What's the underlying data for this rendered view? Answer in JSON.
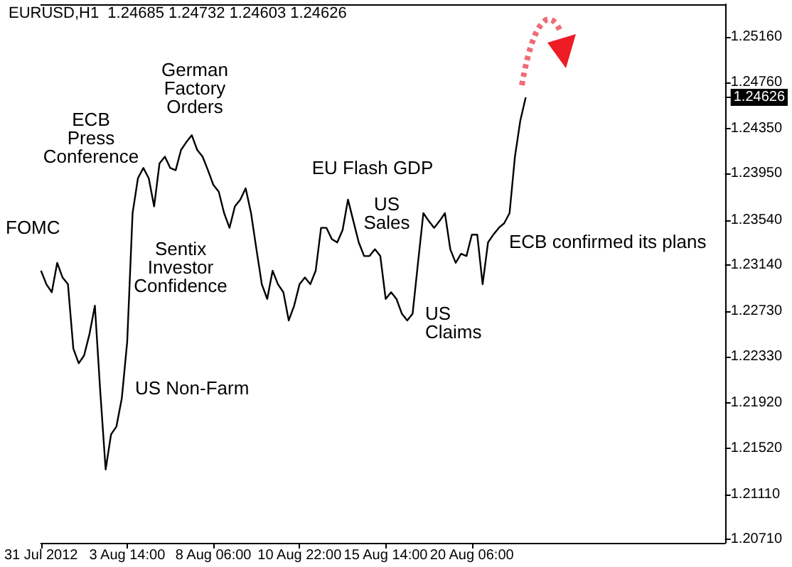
{
  "chart_data": {
    "type": "line",
    "title": "EURUSD,H1  1.24685 1.24732 1.24603 1.24626",
    "categories": [
      "31 Jul 2012",
      null,
      null,
      null,
      null,
      null,
      null,
      null,
      null,
      null,
      null,
      null,
      null,
      null,
      null,
      null,
      "3 Aug 14:00",
      null,
      null,
      null,
      null,
      null,
      null,
      null,
      null,
      null,
      null,
      null,
      null,
      null,
      null,
      null,
      "8 Aug 06:00",
      null,
      null,
      null,
      null,
      null,
      null,
      null,
      null,
      null,
      null,
      null,
      null,
      null,
      null,
      null,
      "10 Aug 22:00",
      null,
      null,
      null,
      null,
      null,
      null,
      null,
      null,
      null,
      null,
      null,
      null,
      null,
      null,
      null,
      "15 Aug 14:00",
      null,
      null,
      null,
      null,
      null,
      null,
      null,
      null,
      null,
      null,
      null,
      null,
      null,
      null,
      null,
      "20 Aug 06:00",
      null,
      null,
      null,
      null,
      null,
      null,
      null,
      null,
      null,
      null,
      null,
      null,
      null,
      null,
      null,
      null,
      null,
      null,
      null,
      null,
      null,
      null,
      null,
      null,
      null,
      null,
      null,
      null,
      null,
      null,
      null,
      null,
      null,
      null,
      null,
      null,
      null,
      null,
      null,
      null,
      null,
      null,
      null,
      null,
      null,
      null,
      null
    ],
    "series": [
      {
        "color": "#000000",
        "values": [
          1.2309,
          1.2297,
          1.229,
          1.2316,
          1.2303,
          1.2297,
          1.224,
          1.2227,
          1.2234,
          1.2253,
          1.2278,
          1.2202,
          1.2133,
          1.2164,
          1.2171,
          1.2196,
          1.2246,
          1.236,
          1.2391,
          1.24,
          1.2391,
          1.2366,
          1.2404,
          1.241,
          1.24,
          1.2398,
          1.2416,
          1.2423,
          1.2429,
          1.2416,
          1.241,
          1.2398,
          1.2385,
          1.2379,
          1.236,
          1.2347,
          1.2366,
          1.2372,
          1.2382,
          1.236,
          1.2328,
          1.2297,
          1.2284,
          1.2309,
          1.2297,
          1.229,
          1.2265,
          1.2278,
          1.2297,
          1.2303,
          1.2297,
          1.2309,
          1.2347,
          1.2347,
          1.2337,
          1.2334,
          1.2345,
          1.2372,
          1.2353,
          1.2334,
          1.2322,
          1.2322,
          1.2328,
          1.2322,
          1.2284,
          1.229,
          1.2284,
          1.2271,
          1.2265,
          1.2271,
          1.2316,
          1.236,
          1.2353,
          1.2347,
          1.2353,
          1.236,
          1.2328,
          1.2316,
          1.2324,
          1.2322,
          1.2341,
          1.2341,
          1.2297,
          1.2334,
          1.2341,
          1.2347,
          1.2351,
          1.236,
          1.241,
          1.2442,
          1.24626,
          null,
          null,
          null,
          null,
          null,
          null,
          null,
          null,
          null,
          null,
          null,
          null,
          null,
          null,
          null,
          null,
          null,
          null,
          null,
          null,
          null,
          null,
          null,
          null,
          null,
          null,
          null,
          null,
          null,
          null,
          null,
          null,
          null,
          null,
          null,
          null,
          null
        ]
      }
    ],
    "ylim": [
      1.2068,
      1.2545
    ],
    "yticks": [
      {
        "value": 1.2071,
        "label": "1.20710"
      },
      {
        "value": 1.2111,
        "label": "1.21110"
      },
      {
        "value": 1.2152,
        "label": "1.21520"
      },
      {
        "value": 1.2192,
        "label": "1.21920"
      },
      {
        "value": 1.2233,
        "label": "1.22330"
      },
      {
        "value": 1.2273,
        "label": "1.22730"
      },
      {
        "value": 1.2314,
        "label": "1.23140"
      },
      {
        "value": 1.2354,
        "label": "1.23540"
      },
      {
        "value": 1.2395,
        "label": "1.23950"
      },
      {
        "value": 1.2435,
        "label": "1.24350"
      },
      {
        "value": 1.2476,
        "label": "1.24760"
      },
      {
        "value": 1.24626,
        "label": "1.24626"
      },
      {
        "value": 1.2516,
        "label": "1.25160"
      }
    ],
    "annotations": [
      "FOMC",
      "ECB\nPress\nConference",
      "German\nFactory\nOrders",
      "Sentix\nInvestor\nConfidence",
      "US Non-Farm",
      "EU Flash GDP",
      "US\nSales",
      "US\nClaims",
      "ECB confirmed its plans"
    ],
    "grid": false,
    "marker": "none",
    "line_style": "solid"
  }
}
